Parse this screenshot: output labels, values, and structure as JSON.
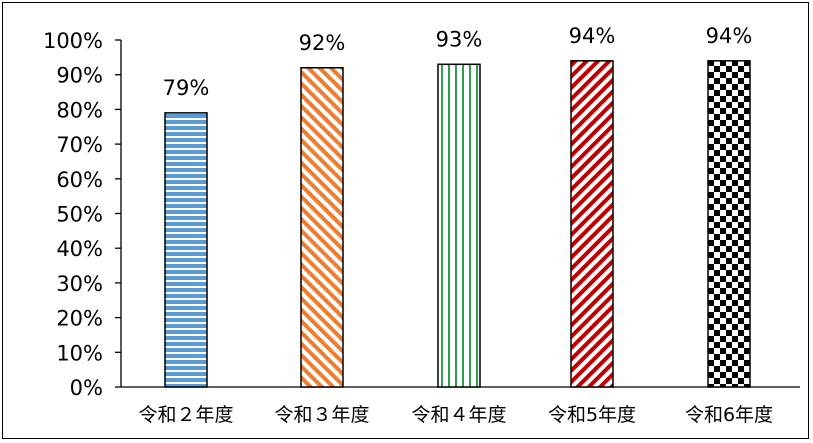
{
  "chart_data": {
    "type": "bar",
    "categories": [
      "令和２年度",
      "令和３年度",
      "令和４年度",
      "令和5年度",
      "令和6年度"
    ],
    "values": [
      79,
      92,
      93,
      94,
      94
    ],
    "data_labels": [
      "79%",
      "92%",
      "93%",
      "94%",
      "94%"
    ],
    "y_tick_labels": [
      "0%",
      "10%",
      "20%",
      "30%",
      "40%",
      "50%",
      "60%",
      "70%",
      "80%",
      "90%",
      "100%"
    ],
    "ylim": [
      0,
      100
    ],
    "title": "",
    "xlabel": "",
    "ylabel": "",
    "grid": false,
    "legend": "none",
    "bar_patterns": [
      "horizontal-stripes",
      "diagonal-stripes",
      "vertical-stripes",
      "diagonal-stripes",
      "checkerboard"
    ],
    "bar_colors": [
      "#5b9bd5",
      "#ed7d31",
      "#2e9e4f",
      "#c00000",
      "#000000"
    ]
  }
}
